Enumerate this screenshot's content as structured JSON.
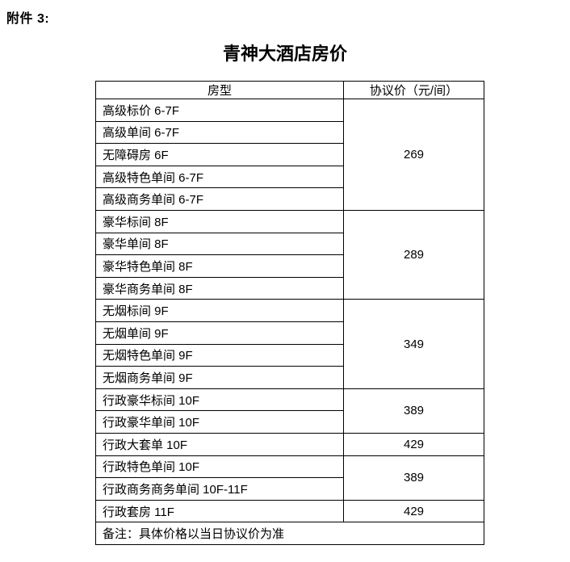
{
  "page": {
    "attachment_label": "附件 3:",
    "title": "青神大酒店房价"
  },
  "table": {
    "headers": [
      "房型",
      "协议价（元/间）"
    ],
    "groups": [
      {
        "rooms": [
          "高级标价 6-7F",
          "高级单间 6-7F",
          "无障碍房 6F",
          "高级特色单间 6-7F",
          "高级商务单间 6-7F"
        ],
        "price": "269"
      },
      {
        "rooms": [
          "豪华标间 8F",
          "豪华单间 8F",
          "豪华特色单间 8F",
          "豪华商务单间 8F"
        ],
        "price": "289"
      },
      {
        "rooms": [
          "无烟标间 9F",
          "无烟单间 9F",
          "无烟特色单间 9F",
          "无烟商务单间 9F"
        ],
        "price": "349"
      },
      {
        "rooms": [
          "行政豪华标间 10F",
          "行政豪华单间 10F"
        ],
        "price": "389"
      },
      {
        "rooms": [
          "行政大套单 10F"
        ],
        "price": "429"
      },
      {
        "rooms": [
          "行政特色单间 10F",
          "行政商务商务单间 10F-11F"
        ],
        "price": "389"
      },
      {
        "rooms": [
          "行政套房 11F"
        ],
        "price": "429"
      }
    ],
    "note": "备注：具体价格以当日协议价为准"
  }
}
